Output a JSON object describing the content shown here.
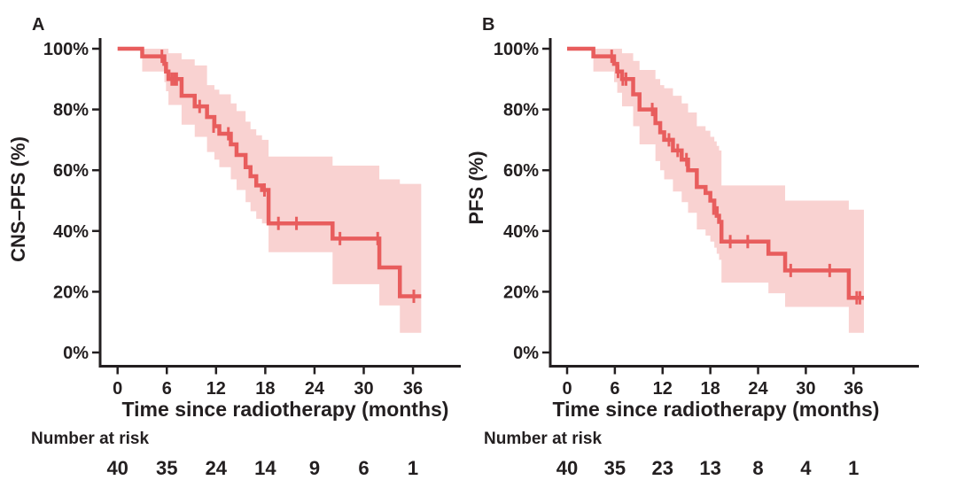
{
  "figure": {
    "background": "#ffffff",
    "x_axis_label": "Time since radiotherapy (months)",
    "number_at_risk_label": "Number at risk"
  },
  "colors": {
    "curve": "#e85d5d",
    "confidence_band": "#f9d2d1",
    "axis": "#231f20",
    "text": "#231f20"
  },
  "chart_data": [
    {
      "type": "line",
      "subtype": "kaplan-meier-step-with-confidence-band",
      "title": "A",
      "xlabel": "Time since radiotherapy (months)",
      "ylabel": "CNS–PFS (%)",
      "xlim": [
        -2,
        42
      ],
      "ylim": [
        0,
        100
      ],
      "grid": false,
      "legend": "none",
      "x_tick_values": [
        0,
        6,
        12,
        18,
        24,
        30,
        36
      ],
      "x_tick_labels": [
        "0",
        "6",
        "12",
        "18",
        "24",
        "30",
        "36"
      ],
      "y_tick_values": [
        0,
        20,
        40,
        60,
        80,
        100
      ],
      "y_tick_labels": [
        "0%",
        "20%",
        "40%",
        "60%",
        "80%",
        "100%"
      ],
      "number_at_risk_label": "Number at risk",
      "number_at_risk_times": [
        0,
        6,
        12,
        18,
        24,
        30,
        36
      ],
      "number_at_risk": [
        "40",
        "35",
        "24",
        "14",
        "9",
        "6",
        "1"
      ],
      "series": [
        {
          "name": "CNS-PFS",
          "end_month": 37.0,
          "step_points": [
            [
              0,
              100
            ],
            [
              3,
              97.5
            ],
            [
              5.7,
              95
            ],
            [
              5.9,
              92.5
            ],
            [
              6.2,
              90
            ],
            [
              7.8,
              84.5
            ],
            [
              9.4,
              81
            ],
            [
              10.9,
              77.5
            ],
            [
              11.8,
              74.5
            ],
            [
              12.4,
              72
            ],
            [
              13.8,
              68.5
            ],
            [
              14.5,
              65
            ],
            [
              15.6,
              61
            ],
            [
              16.2,
              58
            ],
            [
              16.9,
              55
            ],
            [
              17.6,
              53.5
            ],
            [
              18.4,
              42.5
            ],
            [
              26.2,
              37.5
            ],
            [
              31.9,
              28
            ],
            [
              34.4,
              18.5
            ]
          ],
          "censor_marks": [
            [
              5.4,
              97.5
            ],
            [
              6.6,
              90
            ],
            [
              6.9,
              90
            ],
            [
              7.2,
              90
            ],
            [
              10.0,
              81
            ],
            [
              11.7,
              74.5
            ],
            [
              13.5,
              72
            ],
            [
              17.9,
              53.5
            ],
            [
              19.6,
              42.5
            ],
            [
              21.8,
              42.5
            ],
            [
              27.1,
              37.5
            ],
            [
              31.7,
              37.5
            ],
            [
              36.1,
              18.5
            ]
          ],
          "confidence_band": [
            [
              3,
              92.5,
              100
            ],
            [
              5.7,
              89,
              100
            ],
            [
              5.9,
              86,
              100
            ],
            [
              6.2,
              81.5,
              98.5
            ],
            [
              7.8,
              75,
              96.5
            ],
            [
              9.4,
              71,
              94.5
            ],
            [
              10.9,
              66,
              88
            ],
            [
              11.8,
              63.5,
              86.5
            ],
            [
              12.4,
              61,
              85
            ],
            [
              13.8,
              57,
              82
            ],
            [
              14.5,
              53.5,
              79.5
            ],
            [
              15.6,
              49.5,
              76
            ],
            [
              16.2,
              46.5,
              73.5
            ],
            [
              16.9,
              44,
              71.5
            ],
            [
              17.6,
              42.5,
              70
            ],
            [
              18.4,
              33,
              64.5
            ],
            [
              26.2,
              22.5,
              61.5
            ],
            [
              31.9,
              15.5,
              57
            ],
            [
              34.4,
              6.5,
              55.5
            ]
          ]
        }
      ]
    },
    {
      "type": "line",
      "subtype": "kaplan-meier-step-with-confidence-band",
      "title": "B",
      "xlabel": "Time since radiotherapy (months)",
      "ylabel": "PFS (%)",
      "xlim": [
        -2,
        44
      ],
      "ylim": [
        0,
        100
      ],
      "grid": false,
      "legend": "none",
      "x_tick_values": [
        0,
        6,
        12,
        18,
        24,
        30,
        36
      ],
      "x_tick_labels": [
        "0",
        "6",
        "12",
        "18",
        "24",
        "30",
        "36"
      ],
      "y_tick_values": [
        0,
        20,
        40,
        60,
        80,
        100
      ],
      "y_tick_labels": [
        "0%",
        "20%",
        "40%",
        "60%",
        "80%",
        "100%"
      ],
      "number_at_risk_label": "Number at risk",
      "number_at_risk_times": [
        0,
        6,
        12,
        18,
        24,
        30,
        36
      ],
      "number_at_risk": [
        "40",
        "35",
        "23",
        "13",
        "8",
        "4",
        "1"
      ],
      "series": [
        {
          "name": "PFS",
          "end_month": 37.3,
          "step_points": [
            [
              0,
              100
            ],
            [
              3.3,
              97.5
            ],
            [
              5.9,
              95
            ],
            [
              6.3,
              92.5
            ],
            [
              6.9,
              90
            ],
            [
              8.3,
              85
            ],
            [
              9.1,
              80
            ],
            [
              11.1,
              75.5
            ],
            [
              11.7,
              72.5
            ],
            [
              12.2,
              70
            ],
            [
              13.3,
              66.5
            ],
            [
              14.4,
              63.5
            ],
            [
              15.2,
              60
            ],
            [
              16.3,
              54.5
            ],
            [
              17.4,
              52.5
            ],
            [
              18.0,
              50
            ],
            [
              18.5,
              47.5
            ],
            [
              18.8,
              45
            ],
            [
              19.1,
              43
            ],
            [
              19.4,
              36.5
            ],
            [
              25.3,
              32.5
            ],
            [
              27.4,
              27
            ],
            [
              35.4,
              18
            ]
          ],
          "censor_marks": [
            [
              5.6,
              97.5
            ],
            [
              6.4,
              92.5
            ],
            [
              7.0,
              90
            ],
            [
              7.4,
              90
            ],
            [
              10.7,
              80
            ],
            [
              12.8,
              70
            ],
            [
              13.9,
              66.5
            ],
            [
              15.0,
              63.5
            ],
            [
              18.4,
              47.5
            ],
            [
              20.5,
              36.5
            ],
            [
              22.7,
              36.5
            ],
            [
              28.1,
              27
            ],
            [
              33.0,
              27
            ],
            [
              36.4,
              18
            ],
            [
              36.8,
              18
            ]
          ],
          "confidence_band": [
            [
              3.3,
              92.5,
              100
            ],
            [
              5.9,
              89,
              100
            ],
            [
              6.3,
              85.5,
              100
            ],
            [
              6.9,
              81,
              98.5
            ],
            [
              8.3,
              74.5,
              96
            ],
            [
              9.1,
              68.5,
              93
            ],
            [
              11.1,
              63,
              90
            ],
            [
              11.7,
              60,
              88
            ],
            [
              12.2,
              57,
              87
            ],
            [
              13.3,
              53,
              84.5
            ],
            [
              14.4,
              49.5,
              82
            ],
            [
              15.2,
              46,
              79
            ],
            [
              16.3,
              40.5,
              74.5
            ],
            [
              17.4,
              38.5,
              73
            ],
            [
              18.0,
              36.5,
              71
            ],
            [
              18.5,
              34.5,
              69.5
            ],
            [
              18.8,
              32.5,
              68
            ],
            [
              19.1,
              30.5,
              66.5
            ],
            [
              19.4,
              23,
              55
            ],
            [
              25.3,
              19.5,
              55
            ],
            [
              27.4,
              15,
              50
            ],
            [
              35.4,
              6.5,
              47
            ]
          ]
        }
      ]
    }
  ]
}
